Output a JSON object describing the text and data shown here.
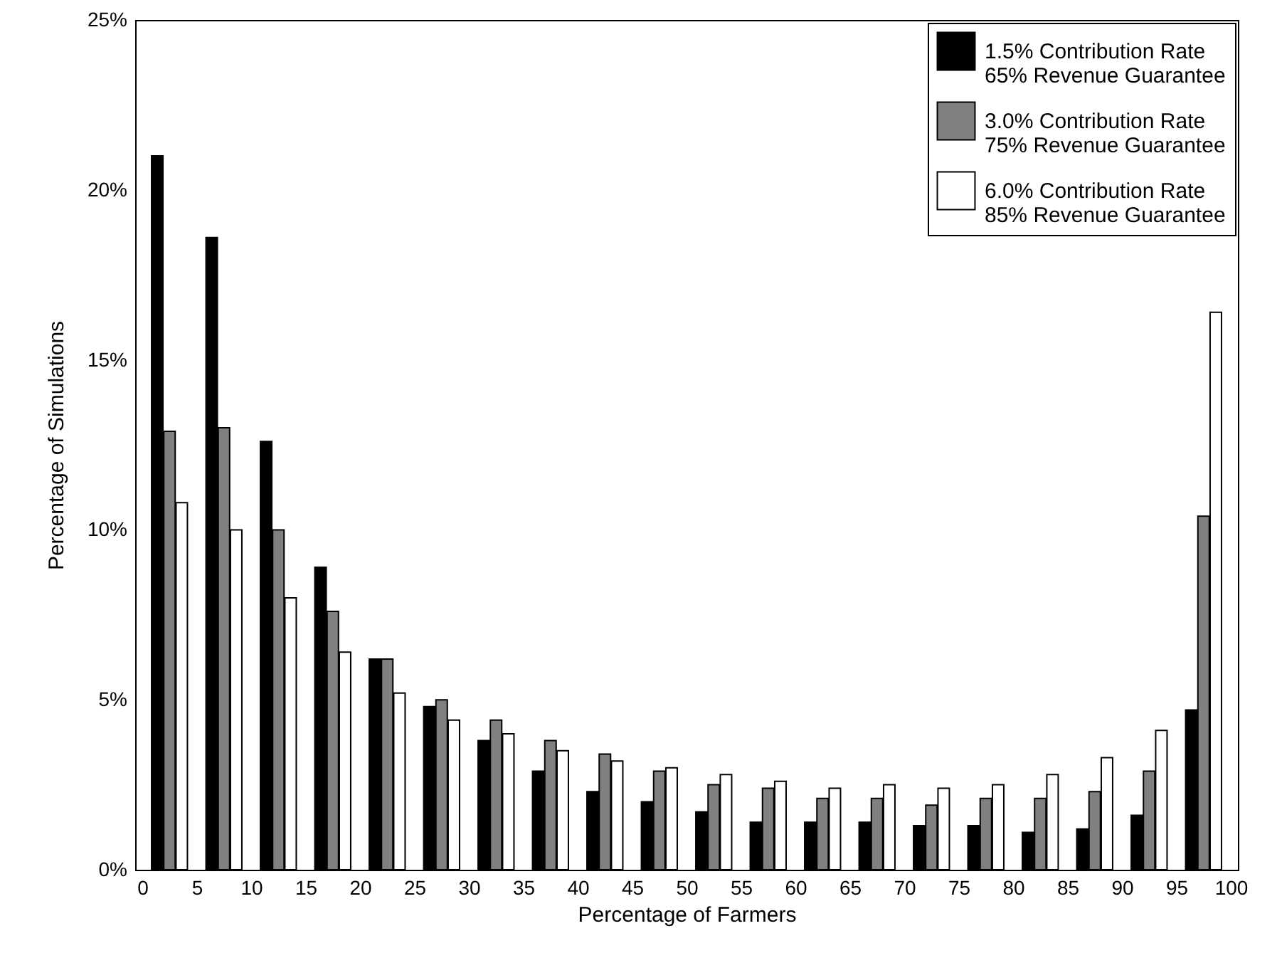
{
  "chart_data": {
    "type": "bar",
    "xlabel": "Percentage of Farmers",
    "ylabel": "Percentage of Simulations",
    "x": [
      2.5,
      7.5,
      12.5,
      17.5,
      22.5,
      27.5,
      32.5,
      37.5,
      42.5,
      47.5,
      52.5,
      57.5,
      62.5,
      67.5,
      72.5,
      77.5,
      82.5,
      87.5,
      92.5,
      97.5
    ],
    "series": [
      {
        "name": "1.5% Contribution Rate\n65% Revenue Guarantee",
        "color": "#000000",
        "values": [
          21.0,
          18.6,
          12.6,
          8.9,
          6.2,
          4.8,
          3.8,
          2.9,
          2.3,
          2.0,
          1.7,
          1.4,
          1.4,
          1.4,
          1.3,
          1.3,
          1.1,
          1.2,
          1.6,
          4.7
        ]
      },
      {
        "name": "3.0% Contribution Rate\n75% Revenue Guarantee",
        "color": "#808080",
        "values": [
          12.9,
          13.0,
          10.0,
          7.6,
          6.2,
          5.0,
          4.4,
          3.8,
          3.4,
          2.9,
          2.5,
          2.4,
          2.1,
          2.1,
          1.9,
          2.1,
          2.1,
          2.3,
          2.9,
          10.4
        ]
      },
      {
        "name": "6.0% Contribution Rate\n85% Revenue Guarantee",
        "color": "#ffffff",
        "values": [
          10.8,
          10.0,
          8.0,
          6.4,
          5.2,
          4.4,
          4.0,
          3.5,
          3.2,
          3.0,
          2.8,
          2.6,
          2.4,
          2.5,
          2.4,
          2.5,
          2.8,
          3.3,
          4.1,
          16.4
        ]
      }
    ],
    "xlim": [
      0,
      100
    ],
    "xticks": [
      0,
      5,
      10,
      15,
      20,
      25,
      30,
      35,
      40,
      45,
      50,
      55,
      60,
      65,
      70,
      75,
      80,
      85,
      90,
      95,
      100
    ],
    "ylim": [
      0,
      25
    ],
    "yticks": [
      {
        "value": 0,
        "label": "0%"
      },
      {
        "value": 5,
        "label": "5%"
      },
      {
        "value": 10,
        "label": "10%"
      },
      {
        "value": 15,
        "label": "15%"
      },
      {
        "value": 20,
        "label": "20%"
      },
      {
        "value": 25,
        "label": "25%"
      }
    ],
    "legend": "top right",
    "grid": false
  }
}
